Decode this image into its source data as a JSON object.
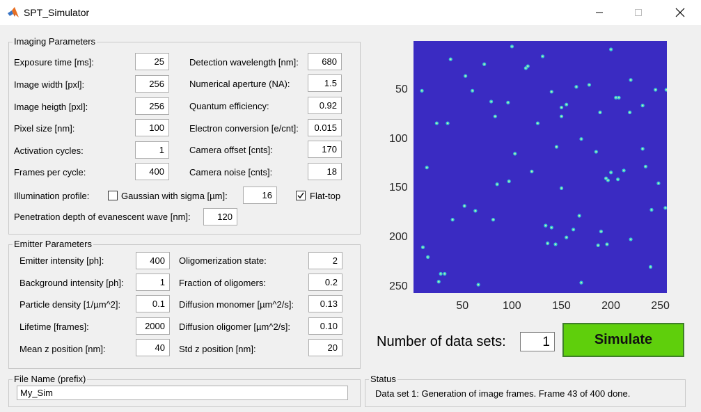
{
  "window": {
    "title": "SPT_Simulator"
  },
  "imaging": {
    "legend": "Imaging Parameters",
    "left": [
      {
        "label": "Exposure time [ms]:",
        "value": "25"
      },
      {
        "label": "Image width [pxl]:",
        "value": "256"
      },
      {
        "label": "Image heigth [pxl]:",
        "value": "256"
      },
      {
        "label": "Pixel size [nm]:",
        "value": "100"
      },
      {
        "label": "Activation cycles:",
        "value": "1"
      },
      {
        "label": "Frames per cycle:",
        "value": "400"
      }
    ],
    "right": [
      {
        "label": "Detection wavelength [nm]:",
        "value": "680"
      },
      {
        "label": "Numerical aperture (NA):",
        "value": "1.5"
      },
      {
        "label": "Quantum efficiency:",
        "value": "0.92"
      },
      {
        "label": "Electron conversion [e/cnt]:",
        "value": "0.015"
      },
      {
        "label": "Camera offset [cnts]:",
        "value": "170"
      },
      {
        "label": "Camera noise [cnts]:",
        "value": "18"
      }
    ],
    "illumination_label": "Illumination profile:",
    "gaussian_label": "Gaussian with sigma [µm]:",
    "gaussian_checked": false,
    "sigma_value": "16",
    "flattop_label": "Flat-top",
    "flattop_checked": true,
    "penetration_label": "Penetration depth of evanescent wave [nm]:",
    "penetration_value": "120"
  },
  "emitter": {
    "legend": "Emitter Parameters",
    "left": [
      {
        "label": "Emitter intensity [ph]:",
        "value": "400"
      },
      {
        "label": "Background intensity [ph]:",
        "value": "1"
      },
      {
        "label": "Particle density [1/µm^2]:",
        "value": "0.1"
      },
      {
        "label": "Lifetime [frames]:",
        "value": "2000"
      },
      {
        "label": "Mean z position [nm]:",
        "value": "40"
      }
    ],
    "right": [
      {
        "label": "Oligomerization state:",
        "value": "2"
      },
      {
        "label": "Fraction of oligomers:",
        "value": "0.2"
      },
      {
        "label": "Diffusion monomer [µm^2/s]:",
        "value": "0.13"
      },
      {
        "label": "Diffusion oligomer [µm^2/s]:",
        "value": "0.10"
      },
      {
        "label": "Std z position [nm]:",
        "value": "20"
      }
    ]
  },
  "plot": {
    "background_color": "#3a2bc2",
    "spot_color": "#35c5d8",
    "x_ticks": [
      "50",
      "100",
      "150",
      "200",
      "250"
    ],
    "y_ticks": [
      "50",
      "100",
      "150",
      "200",
      "250"
    ],
    "x_tick_values": [
      50,
      100,
      150,
      200,
      250
    ],
    "y_tick_values": [
      50,
      100,
      150,
      200,
      250
    ],
    "xlim": [
      0.5,
      256.5
    ],
    "ylim": [
      0.5,
      256.5
    ],
    "spots": [
      [
        100,
        6
      ],
      [
        38,
        19
      ],
      [
        131,
        16
      ],
      [
        72,
        24
      ],
      [
        116,
        26
      ],
      [
        114,
        28
      ],
      [
        200,
        9
      ],
      [
        155,
        65
      ],
      [
        9,
        51
      ],
      [
        60,
        51
      ],
      [
        140,
        52
      ],
      [
        165,
        47
      ],
      [
        220,
        40
      ],
      [
        245,
        50
      ],
      [
        256,
        50
      ],
      [
        53,
        36
      ],
      [
        79,
        62
      ],
      [
        96,
        63
      ],
      [
        150,
        68
      ],
      [
        205,
        58
      ],
      [
        208,
        58
      ],
      [
        232,
        66
      ],
      [
        189,
        73
      ],
      [
        219,
        73
      ],
      [
        178,
        45
      ],
      [
        24,
        84
      ],
      [
        35,
        84
      ],
      [
        83,
        77
      ],
      [
        126,
        84
      ],
      [
        150,
        77
      ],
      [
        170,
        100
      ],
      [
        145,
        108
      ],
      [
        232,
        110
      ],
      [
        185,
        113
      ],
      [
        14,
        129
      ],
      [
        120,
        133
      ],
      [
        200,
        134
      ],
      [
        213,
        132
      ],
      [
        235,
        128
      ],
      [
        195,
        140
      ],
      [
        197,
        142
      ],
      [
        207,
        141
      ],
      [
        85,
        146
      ],
      [
        97,
        143
      ],
      [
        150,
        150
      ],
      [
        248,
        145
      ],
      [
        52,
        168
      ],
      [
        63,
        173
      ],
      [
        241,
        172
      ],
      [
        255,
        170
      ],
      [
        40,
        182
      ],
      [
        81,
        182
      ],
      [
        134,
        188
      ],
      [
        162,
        192
      ],
      [
        155,
        200
      ],
      [
        140,
        190
      ],
      [
        168,
        178
      ],
      [
        190,
        194
      ],
      [
        220,
        202
      ],
      [
        10,
        210
      ],
      [
        136,
        206
      ],
      [
        144,
        207
      ],
      [
        187,
        208
      ],
      [
        15,
        220
      ],
      [
        28,
        237
      ],
      [
        32,
        237
      ],
      [
        26,
        245
      ],
      [
        66,
        248
      ],
      [
        170,
        246
      ],
      [
        196,
        207
      ],
      [
        240,
        230
      ],
      [
        103,
        115
      ]
    ]
  },
  "ndatasets_label": "Number of data sets:",
  "ndatasets_value": "1",
  "simulate_label": "Simulate",
  "file": {
    "legend": "File Name (prefix)",
    "value": "My_Sim"
  },
  "status": {
    "legend": "Status",
    "text": "Data set 1: Generation of image frames. Frame 43 of 400 done."
  }
}
